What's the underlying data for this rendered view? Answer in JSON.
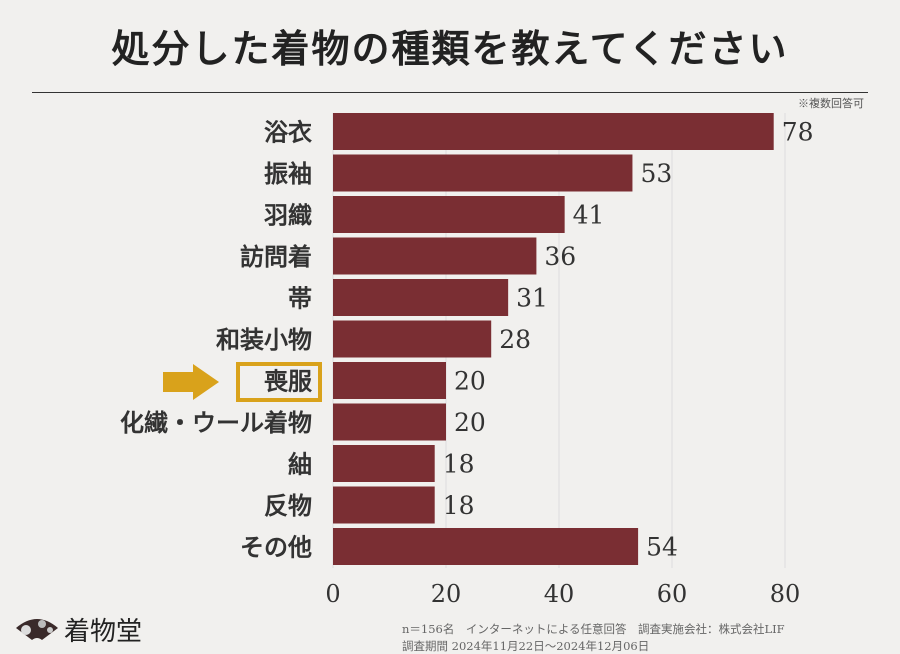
{
  "chart_data": {
    "type": "bar",
    "orientation": "horizontal",
    "title": "処分した着物の種類を教えてください",
    "note": "※複数回答可",
    "categories": [
      "浴衣",
      "振袖",
      "羽織",
      "訪問着",
      "帯",
      "和装小物",
      "喪服",
      "化繊・ウール着物",
      "紬",
      "反物",
      "その他"
    ],
    "values": [
      78,
      53,
      41,
      36,
      31,
      28,
      20,
      20,
      18,
      18,
      54
    ],
    "highlighted_category": "喪服",
    "xlim": [
      0,
      80
    ],
    "xticks": [
      "0",
      "20",
      "40",
      "60",
      "80"
    ],
    "grid": true,
    "bar_color": "#7a2e33",
    "highlight_color": "#d9a21b"
  },
  "footer": {
    "line1": "n＝156名　インターネットによる任意回答　調査実施会社：株式会社LIF",
    "line2": "調査期間  2024年11月22日～2024年12月06日"
  },
  "brand": {
    "name": "着物堂",
    "icon": "fan-icon"
  }
}
